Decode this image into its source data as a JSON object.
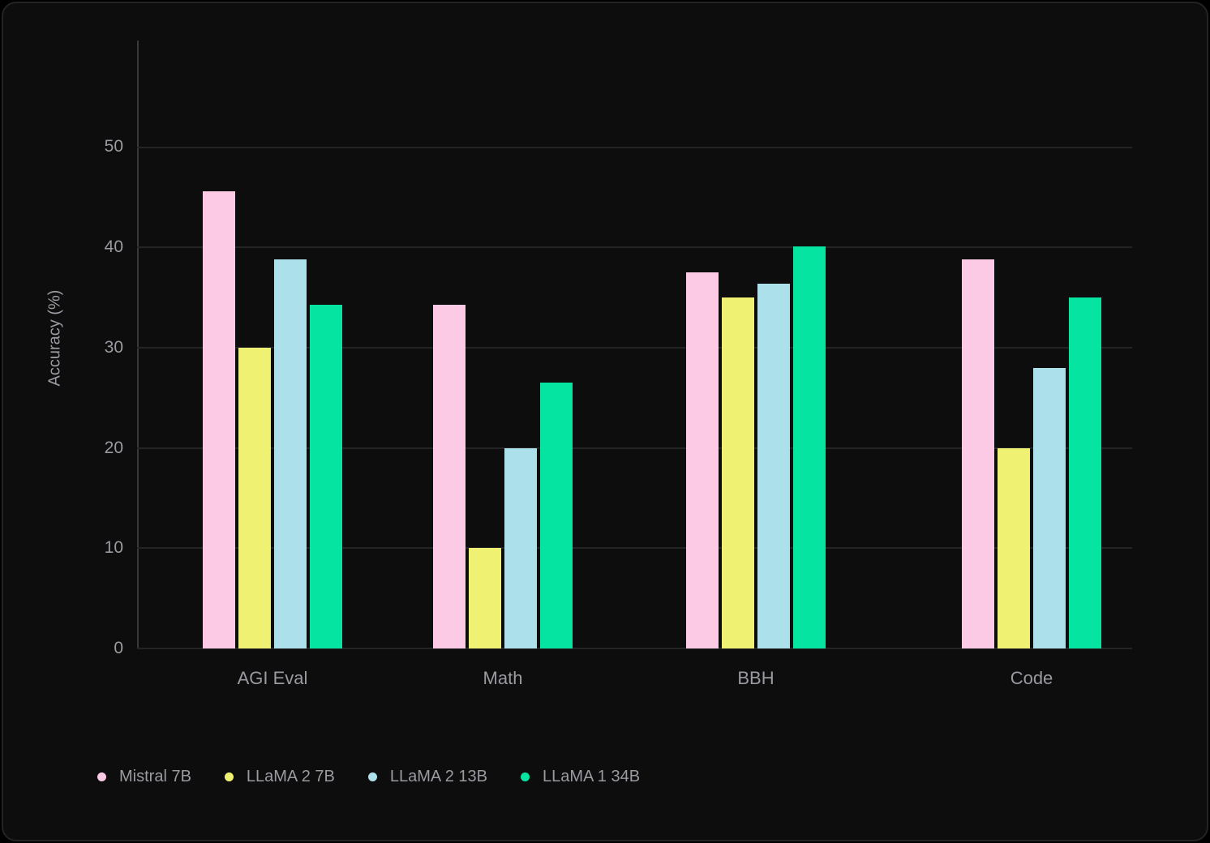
{
  "chart_data": {
    "type": "bar",
    "title": "",
    "ylabel": "Accuracy (%)",
    "xlabel": "",
    "categories": [
      "AGI Eval",
      "Math",
      "BBH",
      "Code"
    ],
    "series": [
      {
        "name": "Mistral 7B",
        "color": "#FCCAE4",
        "values": [
          45.6,
          34.3,
          37.5,
          38.8
        ]
      },
      {
        "name": "LLaMA 2 7B",
        "color": "#EFF173",
        "values": [
          30.0,
          10.0,
          35.0,
          20.0
        ]
      },
      {
        "name": "LLaMA 2 13B",
        "color": "#ACE1EB",
        "values": [
          38.8,
          20.0,
          36.4,
          28.0
        ]
      },
      {
        "name": "LLaMA 1 34B",
        "color": "#05E4A1",
        "values": [
          34.3,
          26.5,
          40.1,
          35.0
        ]
      }
    ],
    "yticks": [
      0,
      10,
      20,
      30,
      40,
      50
    ],
    "ylim": [
      0,
      60.63
    ],
    "grid": true,
    "legend_position": "bottom-left",
    "background_color": "#0D0D0E",
    "text_color": "#9A9AA0",
    "gridline_color": "#242426"
  }
}
